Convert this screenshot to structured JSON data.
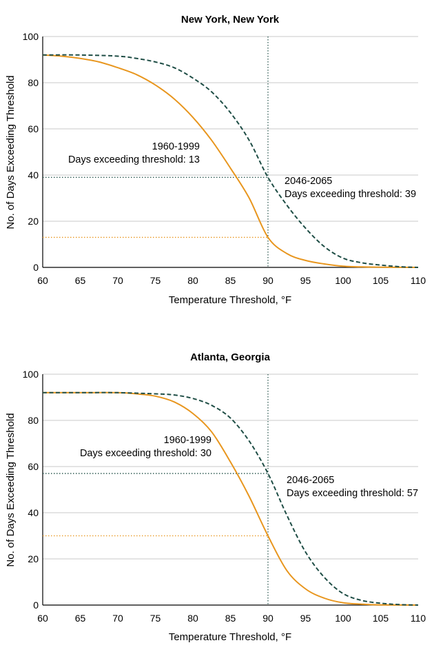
{
  "chart_data": [
    {
      "type": "line",
      "title": "New York, New York",
      "xlabel": "Temperature Threshold, °F",
      "ylabel": "No. of Days Exceeding Threshold",
      "xlim": [
        60,
        110
      ],
      "ylim": [
        0,
        100
      ],
      "xticks": [
        60,
        65,
        70,
        75,
        80,
        85,
        90,
        95,
        100,
        105,
        110
      ],
      "yticks": [
        0,
        20,
        40,
        60,
        80,
        100
      ],
      "grid": true,
      "reference_x": 90,
      "series": [
        {
          "name": "1960-1999",
          "color": "#e8961e",
          "style": "solid",
          "x": [
            60,
            62.5,
            65,
            67.5,
            70,
            72.5,
            75,
            77.5,
            80,
            82.5,
            85,
            87.5,
            90,
            92.5,
            95,
            97.5,
            100,
            102.5,
            105,
            110
          ],
          "y": [
            92,
            91.5,
            90.5,
            89,
            86.5,
            83.5,
            79,
            73,
            65,
            55,
            43,
            30,
            13,
            6,
            3,
            1.5,
            0.5,
            0.2,
            0.1,
            0
          ],
          "threshold_value": 13,
          "annotation_line1": "1960-1999",
          "annotation_line2": "Days exceeding threshold: 13"
        },
        {
          "name": "2046-2065",
          "color": "#1e4d45",
          "style": "dashed",
          "x": [
            60,
            65,
            70,
            72.5,
            75,
            77.5,
            80,
            82.5,
            85,
            87.5,
            90,
            92.5,
            95,
            97.5,
            100,
            102.5,
            105,
            107.5,
            110
          ],
          "y": [
            92,
            92,
            91.5,
            90.5,
            89,
            86.5,
            82,
            76,
            67,
            55,
            39,
            27,
            17,
            9,
            4,
            2,
            1,
            0.3,
            0
          ],
          "threshold_value": 39,
          "annotation_line1": "2046-2065",
          "annotation_line2": "Days exceeding threshold: 39"
        }
      ]
    },
    {
      "type": "line",
      "title": "Atlanta, Georgia",
      "xlabel": "Temperature Threshold, °F",
      "ylabel": "No. of Days Exceeding Threshold",
      "xlim": [
        60,
        110
      ],
      "ylim": [
        0,
        100
      ],
      "xticks": [
        60,
        65,
        70,
        75,
        80,
        85,
        90,
        95,
        100,
        105,
        110
      ],
      "yticks": [
        0,
        20,
        40,
        60,
        80,
        100
      ],
      "grid": true,
      "reference_x": 90,
      "series": [
        {
          "name": "1960-1999",
          "color": "#e8961e",
          "style": "solid",
          "x": [
            60,
            65,
            70,
            72.5,
            75,
            77.5,
            80,
            82.5,
            85,
            87.5,
            90,
            92.5,
            95,
            97.5,
            100,
            102.5,
            105,
            110
          ],
          "y": [
            92,
            92,
            92,
            91.5,
            90.5,
            88,
            83,
            75,
            62,
            47,
            30,
            15,
            7,
            3,
            1,
            0.4,
            0.1,
            0
          ],
          "threshold_value": 30,
          "annotation_line1": "1960-1999",
          "annotation_line2": "Days exceeding threshold: 30"
        },
        {
          "name": "2046-2065",
          "color": "#1e4d45",
          "style": "dashed",
          "x": [
            60,
            65,
            70,
            75,
            77.5,
            80,
            82.5,
            85,
            87.5,
            90,
            92.5,
            95,
            97.5,
            100,
            102.5,
            105,
            107.5,
            110
          ],
          "y": [
            92,
            92,
            92,
            91.5,
            91,
            89.5,
            86.5,
            81,
            71,
            57,
            39,
            23,
            12,
            5,
            2,
            0.8,
            0.2,
            0
          ],
          "threshold_value": 57,
          "annotation_line1": "2046-2065",
          "annotation_line2": "Days exceeding threshold: 57"
        }
      ]
    }
  ]
}
